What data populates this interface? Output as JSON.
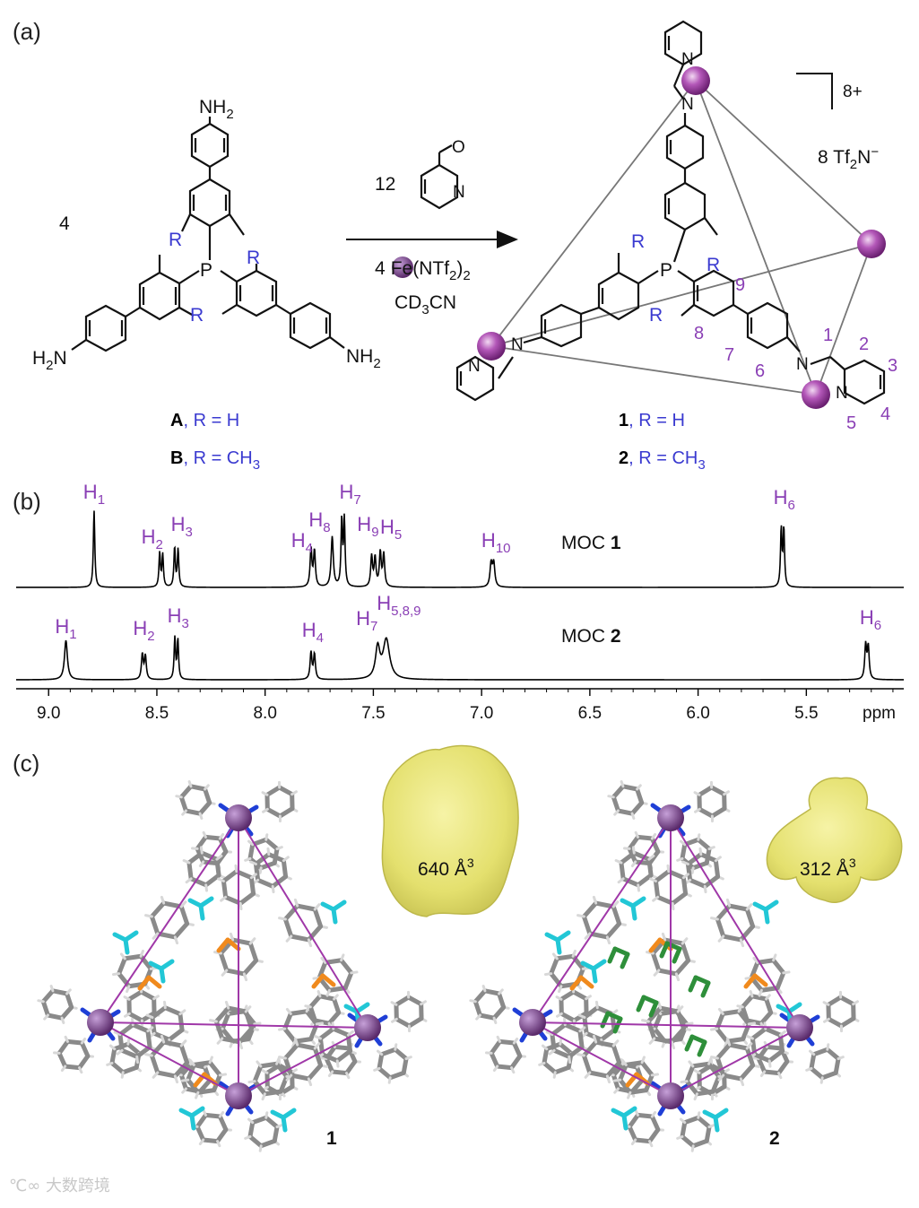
{
  "panels": {
    "a": "(a)",
    "b": "(b)",
    "c": "(c)"
  },
  "reaction": {
    "coef_ligand": "4",
    "coef_aldehyde": "12",
    "reagent_coef": "4",
    "reagent_metal": "Fe",
    "reagent_rest": "(NTf",
    "reagent_sub": "2",
    "reagent_close": ")",
    "reagent_sub2": "2",
    "solvent_a": "CD",
    "solvent_sub": "3",
    "solvent_b": "CN",
    "charge": "8+",
    "counterion_pre": "8 Tf",
    "counterion_sub": "2",
    "counterion_post": "N",
    "counterion_sup": "−"
  },
  "ligand": {
    "nh2_top": "NH",
    "nh2_left": "H",
    "nh2_left_b": "N",
    "nh2_right": "NH",
    "sub2": "2",
    "p": "P",
    "r": "R",
    "caption_A_bold": "A",
    "caption_A": ", R = H",
    "caption_B_bold": "B",
    "caption_B": ", R = CH",
    "caption_sub": "3"
  },
  "cage": {
    "n": "N",
    "p": "P",
    "r": "R",
    "positions": [
      "1",
      "2",
      "3",
      "4",
      "5",
      "6",
      "7",
      "8",
      "9"
    ],
    "caption_1_bold": "1",
    "caption_1": ", R = H",
    "caption_2_bold": "2",
    "caption_2": ", R = CH",
    "caption_sub": "3"
  },
  "aldehyde": {
    "o": "O",
    "n": "N"
  },
  "nmr": {
    "spectrum_1": {
      "label": "MOC ",
      "label_bold": "1",
      "peaks": [
        {
          "h": "H",
          "sub": "1",
          "ppm": 8.79
        },
        {
          "h": "H",
          "sub": "2",
          "ppm": 8.48
        },
        {
          "h": "H",
          "sub": "3",
          "ppm": 8.41
        },
        {
          "h": "H",
          "sub": "4",
          "ppm": 7.78
        },
        {
          "h": "H",
          "sub": "8",
          "ppm": 7.69
        },
        {
          "h": "H",
          "sub": "7",
          "ppm": 7.64
        },
        {
          "h": "H",
          "sub": "9",
          "ppm": 7.5
        },
        {
          "h": "H",
          "sub": "5",
          "ppm": 7.46
        },
        {
          "h": "H",
          "sub": "10",
          "ppm": 6.95
        },
        {
          "h": "H",
          "sub": "6",
          "ppm": 5.61
        }
      ]
    },
    "spectrum_2": {
      "label": "MOC ",
      "label_bold": "2",
      "peaks": [
        {
          "h": "H",
          "sub": "1",
          "ppm": 8.92
        },
        {
          "h": "H",
          "sub": "2",
          "ppm": 8.56
        },
        {
          "h": "H",
          "sub": "3",
          "ppm": 8.41
        },
        {
          "h": "H",
          "sub": "4",
          "ppm": 7.78
        },
        {
          "h": "H",
          "sub": "7",
          "ppm": 7.48
        },
        {
          "h": "H",
          "sub": "5,8,9",
          "ppm": 7.44
        },
        {
          "h": "H",
          "sub": "6",
          "ppm": 5.22
        }
      ]
    },
    "axis": {
      "ticks": [
        "9.0",
        "8.5",
        "8.0",
        "7.5",
        "7.0",
        "6.5",
        "6.0",
        "5.5"
      ],
      "unit": "ppm",
      "range": [
        9.15,
        5.05
      ]
    }
  },
  "structures": {
    "cavity_1": {
      "value": "640 Å",
      "sup": "3"
    },
    "cavity_2": {
      "value": "312 Å",
      "sup": "3"
    },
    "label_1": "1",
    "label_2": "2"
  },
  "watermark": "大数跨境",
  "colors": {
    "metal": "#9b3aa5",
    "label_blue": "#3a3ad0",
    "label_purple": "#8a3fb5",
    "cavity": "#e8e67a",
    "nitrogen": "#1f3fd6",
    "phosphorus": "#f08a1d",
    "fluoro": "#22c7d6",
    "guest": "#2e8f3a"
  }
}
